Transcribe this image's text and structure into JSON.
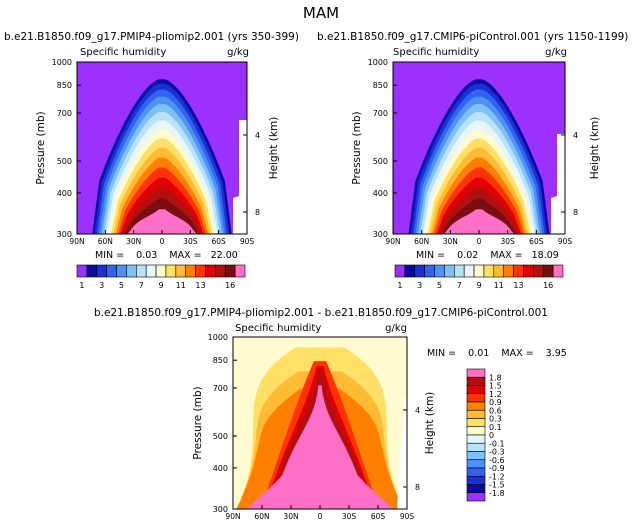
{
  "page_title": "MAM",
  "chart_data": [
    {
      "type": "heatmap",
      "title": "b.e21.B1850.f09_g17.PMIP4-pliomip2.001 (yrs 350-399)",
      "subtitle": "Specific humidity",
      "units": "g/kg",
      "ylabel": "Pressure (mb)",
      "ylabel_right": "Height (km)",
      "x_ticks": [
        "90N",
        "60N",
        "30N",
        "0",
        "30S",
        "60S",
        "90S"
      ],
      "y_ticks": [
        "300",
        "400",
        "500",
        "700",
        "850",
        "1000"
      ],
      "height_ticks": [
        "8",
        "4"
      ],
      "stats": "MIN =    0.03    MAX =   22.00",
      "min": 0.03,
      "max": 22.0,
      "colorbar_labels": [
        "1",
        "3",
        "5",
        "7",
        "9",
        "11",
        "13",
        "16"
      ]
    },
    {
      "type": "heatmap",
      "title": "b.e21.B1850.f09_g17.CMIP6-piControl.001 (yrs 1150-1199)",
      "subtitle": "Specific humidity",
      "units": "g/kg",
      "ylabel": "Pressure (mb)",
      "ylabel_right": "Height (km)",
      "x_ticks": [
        "90N",
        "60N",
        "30N",
        "0",
        "30S",
        "60S",
        "90S"
      ],
      "y_ticks": [
        "300",
        "400",
        "500",
        "700",
        "850",
        "1000"
      ],
      "height_ticks": [
        "8",
        "4"
      ],
      "stats": "MIN =    0.02    MAX =   18.09",
      "min": 0.02,
      "max": 18.09,
      "colorbar_labels": [
        "1",
        "3",
        "5",
        "7",
        "9",
        "11",
        "13",
        "16"
      ]
    },
    {
      "type": "heatmap",
      "title": "b.e21.B1850.f09_g17.PMIP4-pliomip2.001 - b.e21.B1850.f09_g17.CMIP6-piControl.001",
      "subtitle": "Specific humidity",
      "units": "g/kg",
      "ylabel": "Pressure (mb)",
      "ylabel_right": "Height (km)",
      "x_ticks": [
        "90N",
        "60N",
        "30N",
        "0",
        "30S",
        "60S",
        "90S"
      ],
      "y_ticks": [
        "300",
        "400",
        "500",
        "700",
        "850",
        "1000"
      ],
      "height_ticks": [
        "8",
        "4"
      ],
      "stats": "MIN =    0.01    MAX =    3.95",
      "min": 0.01,
      "max": 3.95,
      "colorbar_labels": [
        "1.8",
        "1.5",
        "1.2",
        "0.9",
        "0.6",
        "0.3",
        "0.1",
        "0",
        "-0.1",
        "-0.3",
        "-0.6",
        "-0.9",
        "-1.2",
        "-1.5",
        "-1.8"
      ]
    }
  ],
  "palettes": {
    "humidity": [
      "#9b30ff",
      "#0a0aa0",
      "#1b2fd6",
      "#2f63f0",
      "#4f92f5",
      "#7dc0fa",
      "#b8e3fb",
      "#e6f6fb",
      "#fffbd0",
      "#ffe066",
      "#ffbb33",
      "#ff8000",
      "#ff3300",
      "#e00000",
      "#b01010",
      "#7a0e0e",
      "#ff6ec7"
    ],
    "difference": [
      "#ff6ec7",
      "#b01010",
      "#e00000",
      "#ff3300",
      "#ff8000",
      "#ffbb33",
      "#ffe066",
      "#fffbd0",
      "#e6f6fb",
      "#b8e3fb",
      "#7dc0fa",
      "#4f92f5",
      "#2f63f0",
      "#1b2fd6",
      "#0a0aa0",
      "#9b30ff"
    ]
  }
}
